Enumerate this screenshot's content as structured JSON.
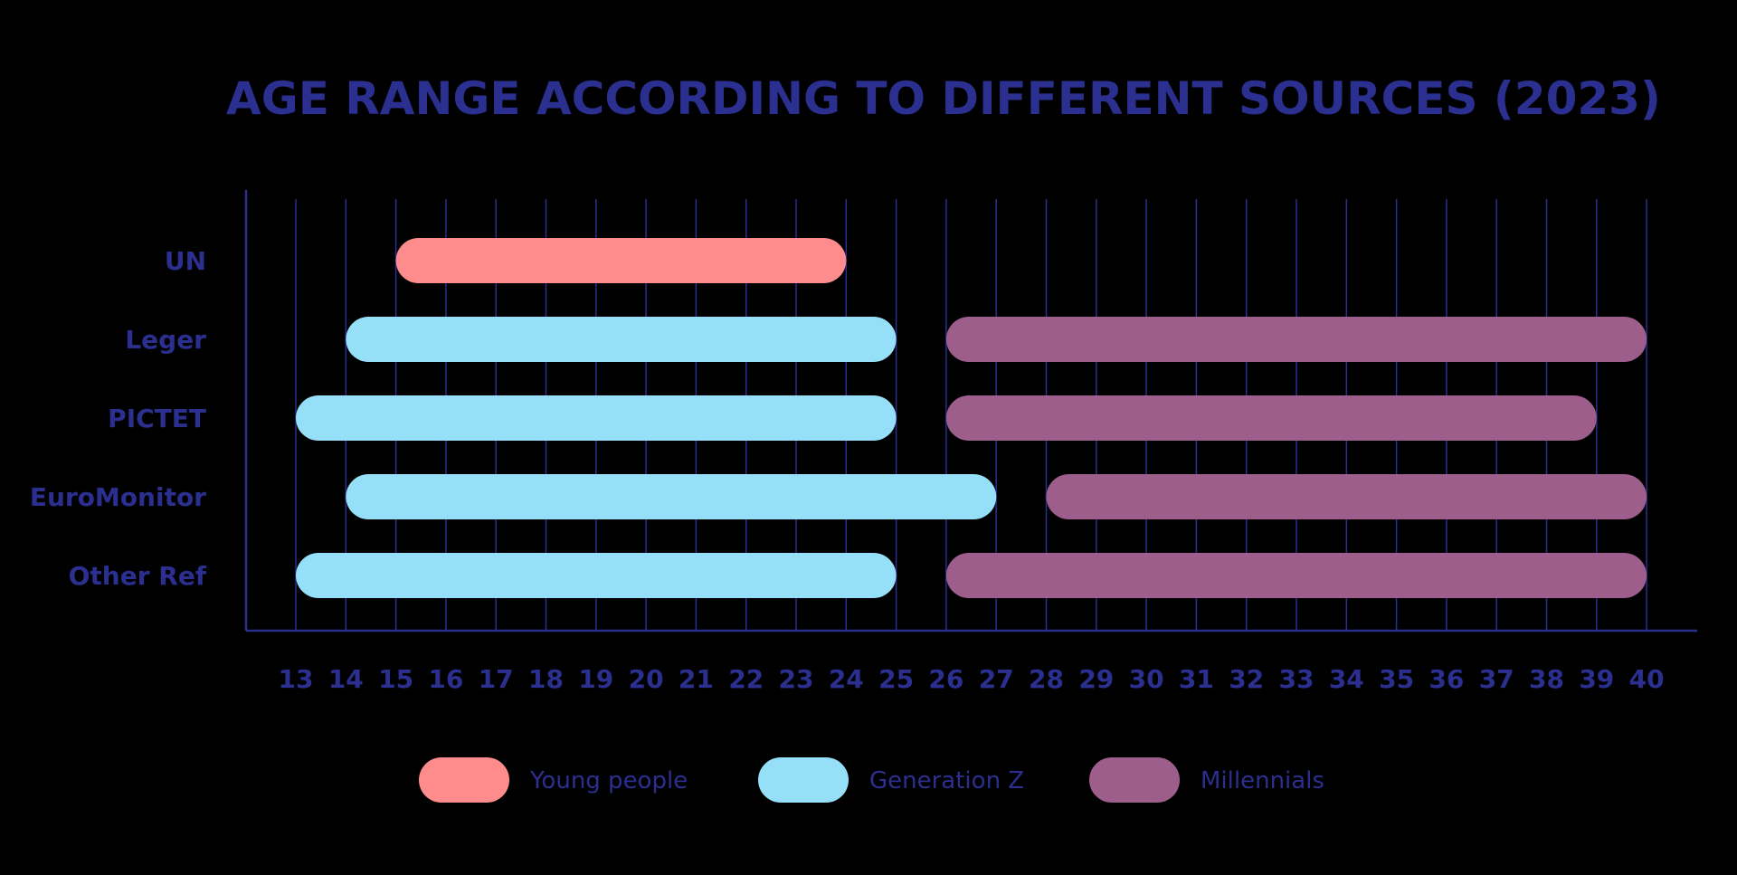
{
  "chart_data": {
    "type": "bar",
    "orientation": "horizontal-range",
    "title": "AGE RANGE ACCORDING TO DIFFERENT SOURCES (2023)",
    "xlabel": "",
    "ylabel": "",
    "xlim": [
      12,
      41
    ],
    "x_ticks": [
      13,
      14,
      15,
      16,
      17,
      18,
      19,
      20,
      21,
      22,
      23,
      24,
      25,
      26,
      27,
      28,
      29,
      30,
      31,
      32,
      33,
      34,
      35,
      36,
      37,
      38,
      39,
      40
    ],
    "grid": true,
    "legend_position": "bottom",
    "categories": [
      "UN",
      "Leger",
      "PICTET",
      "EuroMonitor",
      "Other Ref"
    ],
    "series": [
      {
        "name": "Young people",
        "color": "#ff8c8c",
        "ranges": [
          [
            15,
            24
          ],
          null,
          null,
          null,
          null
        ]
      },
      {
        "name": "Generation Z",
        "color": "#95dff8",
        "ranges": [
          null,
          [
            14,
            25
          ],
          [
            13,
            25
          ],
          [
            14,
            27
          ],
          [
            13,
            25
          ]
        ]
      },
      {
        "name": "Millennials",
        "color": "#9e5e8c",
        "ranges": [
          null,
          [
            26,
            40
          ],
          [
            26,
            39
          ],
          [
            28,
            40
          ],
          [
            26,
            40
          ]
        ]
      }
    ],
    "colors": {
      "text": "#2b2f8f",
      "axis": "#2b2f8f",
      "grid": "#2b2f8f",
      "background": "#000000"
    }
  }
}
